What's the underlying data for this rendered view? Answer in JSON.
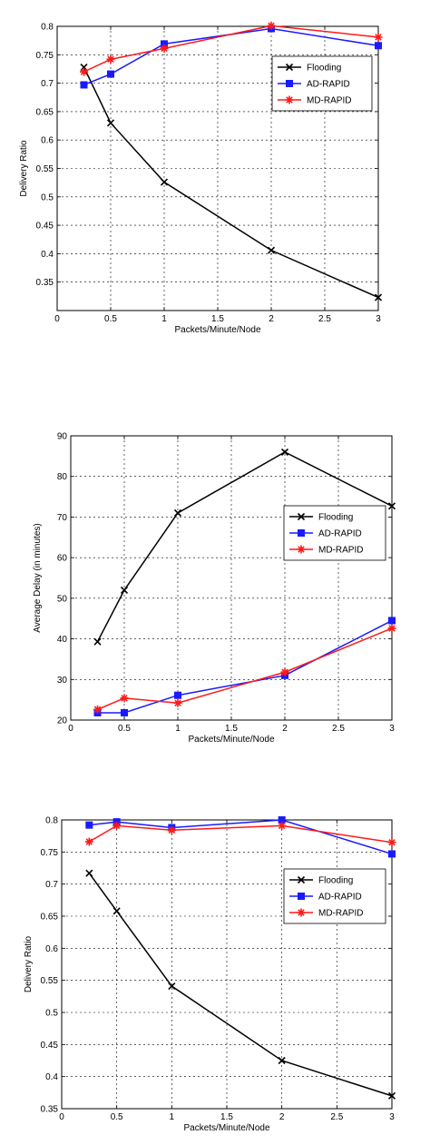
{
  "colors": {
    "Flooding": "#000000",
    "AD-RAPID": "#1a1aff",
    "MD-RAPID": "#ff1a1a"
  },
  "chart_data": [
    {
      "type": "line",
      "xlabel": "Packets/Minute/Node",
      "ylabel": "Delivery Ratio",
      "xlim": [
        0,
        3
      ],
      "ylim": [
        0.3,
        0.8
      ],
      "xticks": [
        "0",
        "0.5",
        "1",
        "1.5",
        "2",
        "2.5",
        "3"
      ],
      "yticks": [
        "0.35",
        "0.4",
        "0.45",
        "0.5",
        "0.55",
        "0.6",
        "0.65",
        "0.7",
        "0.75",
        "0.8"
      ],
      "grid": true,
      "legend": "upper right",
      "series": [
        {
          "name": "Flooding",
          "marker": "x",
          "x": [
            0.25,
            0.5,
            1,
            2,
            3
          ],
          "y": [
            0.728,
            0.63,
            0.526,
            0.406,
            0.323
          ]
        },
        {
          "name": "AD-RAPID",
          "marker": "square",
          "x": [
            0.25,
            0.5,
            1,
            2,
            3
          ],
          "y": [
            0.697,
            0.716,
            0.769,
            0.796,
            0.766
          ]
        },
        {
          "name": "MD-RAPID",
          "marker": "star",
          "x": [
            0.25,
            0.5,
            1,
            2,
            3
          ],
          "y": [
            0.72,
            0.742,
            0.761,
            0.801,
            0.781
          ]
        }
      ]
    },
    {
      "type": "line",
      "xlabel": "Packets/Minute/Node",
      "ylabel": "Average Delay (in minutes)",
      "xlim": [
        0,
        3
      ],
      "ylim": [
        20,
        90
      ],
      "xticks": [
        "0",
        "0.5",
        "1",
        "1.5",
        "2",
        "2.5",
        "3"
      ],
      "yticks": [
        "20",
        "30",
        "40",
        "50",
        "60",
        "70",
        "80",
        "90"
      ],
      "grid": true,
      "legend": "right",
      "series": [
        {
          "name": "Flooding",
          "marker": "x",
          "x": [
            0.25,
            0.5,
            1,
            2,
            3
          ],
          "y": [
            39.3,
            52.0,
            71.0,
            86.0,
            72.7
          ]
        },
        {
          "name": "AD-RAPID",
          "marker": "square",
          "x": [
            0.25,
            0.5,
            1,
            2,
            3
          ],
          "y": [
            21.8,
            21.8,
            26.1,
            31.0,
            44.5
          ]
        },
        {
          "name": "MD-RAPID",
          "marker": "star",
          "x": [
            0.25,
            0.5,
            1,
            2,
            3
          ],
          "y": [
            22.6,
            25.4,
            24.2,
            31.8,
            42.6
          ]
        }
      ]
    },
    {
      "type": "line",
      "xlabel": "Packets/Minute/Node",
      "ylabel": "Delivery Ratio",
      "xlim": [
        0,
        3
      ],
      "ylim": [
        0.35,
        0.8
      ],
      "xticks": [
        "0",
        "0.5",
        "1",
        "1.5",
        "2",
        "2.5",
        "3"
      ],
      "yticks": [
        "0.35",
        "0.4",
        "0.45",
        "0.5",
        "0.55",
        "0.6",
        "0.65",
        "0.7",
        "0.75",
        "0.8"
      ],
      "grid": true,
      "legend": "upper right",
      "series": [
        {
          "name": "Flooding",
          "marker": "x",
          "x": [
            0.25,
            0.5,
            1,
            2,
            3
          ],
          "y": [
            0.717,
            0.658,
            0.541,
            0.425,
            0.37
          ]
        },
        {
          "name": "AD-RAPID",
          "marker": "square",
          "x": [
            0.25,
            0.5,
            1,
            2,
            3
          ],
          "y": [
            0.792,
            0.797,
            0.788,
            0.8,
            0.747
          ]
        },
        {
          "name": "MD-RAPID",
          "marker": "star",
          "x": [
            0.25,
            0.5,
            1,
            2,
            3
          ],
          "y": [
            0.766,
            0.791,
            0.784,
            0.791,
            0.765
          ]
        }
      ]
    }
  ]
}
